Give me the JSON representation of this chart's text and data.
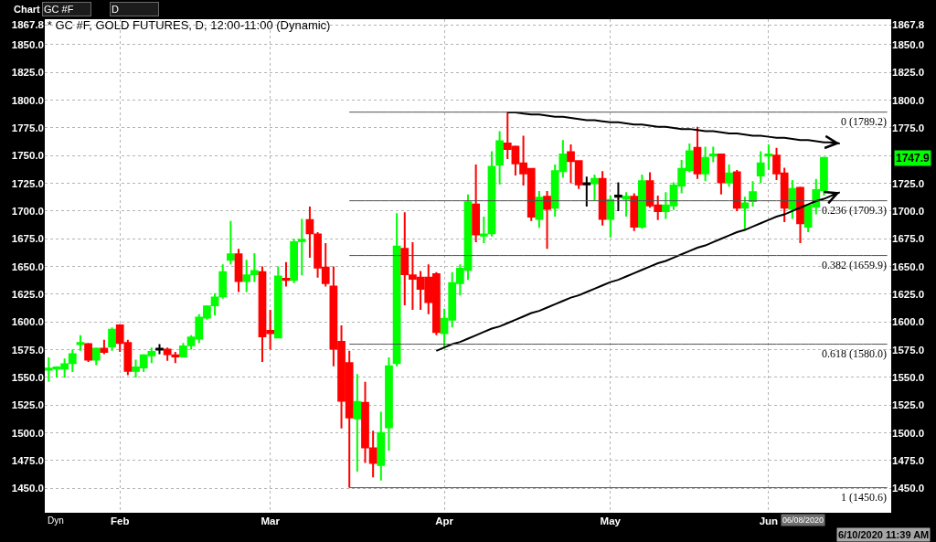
{
  "chart_data": {
    "type": "candlestick",
    "title": "* GC #F, GOLD FUTURES, D, 12:00-11:00 (Dynamic)",
    "categories": [
      null,
      null,
      null,
      null,
      null,
      null,
      null,
      null,
      null,
      "Feb",
      null,
      null,
      null,
      null,
      null,
      null,
      null,
      null,
      null,
      null,
      null,
      null,
      null,
      null,
      null,
      null,
      null,
      null,
      "Mar",
      null,
      null,
      null,
      null,
      null,
      null,
      null,
      null,
      null,
      null,
      null,
      null,
      null,
      null,
      null,
      null,
      null,
      null,
      null,
      null,
      null,
      "Apr",
      null,
      null,
      null,
      null,
      null,
      null,
      null,
      null,
      null,
      null,
      null,
      null,
      null,
      null,
      null,
      null,
      null,
      null,
      null,
      null,
      "May",
      null,
      null,
      null,
      null,
      null,
      null,
      null,
      null,
      null,
      null,
      null,
      null,
      null,
      null,
      null,
      null,
      null,
      null,
      null,
      "Jun",
      null,
      null,
      null,
      null,
      null,
      null,
      null,
      null,
      null,
      null,
      null,
      null,
      null,
      null,
      null
    ],
    "ohlc": [
      [
        1557,
        1568,
        1546,
        1558
      ],
      [
        1558,
        1560,
        1550,
        1559
      ],
      [
        1558,
        1567,
        1550,
        1562
      ],
      [
        1563,
        1575,
        1555,
        1571
      ],
      [
        1580,
        1588,
        1574,
        1581
      ],
      [
        1580,
        1581,
        1564,
        1566
      ],
      [
        1566,
        1577,
        1561,
        1576
      ],
      [
        1576,
        1584,
        1571,
        1573
      ],
      [
        1578,
        1595,
        1574,
        1593
      ],
      [
        1597,
        1598,
        1573,
        1581
      ],
      [
        1581,
        1584,
        1552,
        1556
      ],
      [
        1556,
        1566,
        1550,
        1559
      ],
      [
        1559,
        1571,
        1555,
        1570
      ],
      [
        1570,
        1577,
        1563,
        1573
      ],
      [
        1575,
        1580,
        1571,
        1576
      ],
      [
        1575,
        1577,
        1565,
        1571
      ],
      [
        1570,
        1573,
        1563,
        1569
      ],
      [
        1569,
        1581,
        1568,
        1578
      ],
      [
        1579,
        1588,
        1575,
        1586
      ],
      [
        1585,
        1607,
        1581,
        1604
      ],
      [
        1604,
        1615,
        1602,
        1614
      ],
      [
        1615,
        1626,
        1606,
        1622
      ],
      [
        1623,
        1652,
        1621,
        1645
      ],
      [
        1656,
        1691,
        1652,
        1661
      ],
      [
        1661,
        1666,
        1627,
        1637
      ],
      [
        1637,
        1656,
        1627,
        1642
      ],
      [
        1643,
        1662,
        1636,
        1646
      ],
      [
        1645,
        1650,
        1564,
        1587
      ],
      [
        1592,
        1611,
        1575,
        1590
      ],
      [
        1586,
        1650,
        1586,
        1641
      ],
      [
        1639,
        1654,
        1632,
        1638
      ],
      [
        1638,
        1675,
        1635,
        1672
      ],
      [
        1673,
        1693,
        1642,
        1674
      ],
      [
        1692,
        1704,
        1658,
        1680
      ],
      [
        1679,
        1681,
        1640,
        1649
      ],
      [
        1649,
        1671,
        1632,
        1635
      ],
      [
        1632,
        1650,
        1560,
        1576
      ],
      [
        1582,
        1597,
        1504,
        1529
      ],
      [
        1563,
        1574,
        1450.6,
        1514
      ],
      [
        1513,
        1553,
        1465,
        1528
      ],
      [
        1527,
        1546,
        1473,
        1487
      ],
      [
        1486,
        1502,
        1460,
        1473
      ],
      [
        1471,
        1519,
        1457,
        1500
      ],
      [
        1505,
        1568,
        1484,
        1560
      ],
      [
        1563,
        1698,
        1560,
        1668
      ],
      [
        1666,
        1699,
        1615,
        1643
      ],
      [
        1642,
        1672,
        1611,
        1639
      ],
      [
        1640,
        1646,
        1611,
        1630
      ],
      [
        1640,
        1652,
        1607,
        1618
      ],
      [
        1643,
        1645,
        1588,
        1591
      ],
      [
        1590,
        1612,
        1576,
        1603
      ],
      [
        1602,
        1645,
        1595,
        1635
      ],
      [
        1635,
        1652,
        1624,
        1648
      ],
      [
        1647,
        1715,
        1638,
        1708
      ],
      [
        1706,
        1742,
        1672,
        1679
      ],
      [
        1678,
        1695,
        1671,
        1679
      ],
      [
        1680,
        1754,
        1677,
        1740
      ],
      [
        1742,
        1772,
        1724,
        1763
      ],
      [
        1761,
        1789.2,
        1747,
        1756
      ],
      [
        1758,
        1759,
        1732,
        1743
      ],
      [
        1743,
        1768,
        1723,
        1734
      ],
      [
        1738,
        1738,
        1691,
        1695
      ],
      [
        1693,
        1718,
        1685,
        1712
      ],
      [
        1713,
        1718,
        1666,
        1702
      ],
      [
        1703,
        1742,
        1695,
        1736
      ],
      [
        1736,
        1764,
        1730,
        1751
      ],
      [
        1753,
        1760,
        1725,
        1745
      ],
      [
        1745,
        1745,
        1720,
        1724
      ],
      [
        1724,
        1731,
        1704,
        1725
      ],
      [
        1725,
        1733,
        1709,
        1729
      ],
      [
        1729,
        1736,
        1687,
        1693
      ],
      [
        1693,
        1714,
        1676,
        1710
      ],
      [
        1713,
        1726,
        1700,
        1714
      ],
      [
        1711,
        1717,
        1695,
        1713
      ],
      [
        1713,
        1716,
        1682,
        1686
      ],
      [
        1686,
        1733,
        1684,
        1727
      ],
      [
        1727,
        1735,
        1703,
        1705
      ],
      [
        1705,
        1714,
        1692,
        1700
      ],
      [
        1700,
        1717,
        1693,
        1705
      ],
      [
        1705,
        1726,
        1701,
        1723
      ],
      [
        1723,
        1746,
        1716,
        1738
      ],
      [
        1737,
        1761,
        1735,
        1754
      ],
      [
        1757,
        1776,
        1729,
        1734
      ],
      [
        1734,
        1758,
        1727,
        1748
      ],
      [
        1750,
        1758,
        1744,
        1751
      ],
      [
        1751,
        1751,
        1715,
        1726
      ],
      [
        1726,
        1742,
        1722,
        1734
      ],
      [
        1735,
        1737,
        1700,
        1703
      ],
      [
        1703,
        1713,
        1683,
        1707
      ],
      [
        1709,
        1727,
        1704,
        1717
      ],
      [
        1732,
        1754,
        1725,
        1743
      ],
      [
        1750,
        1760,
        1737,
        1751
      ],
      [
        1750,
        1757,
        1728,
        1734
      ],
      [
        1734,
        1739,
        1690,
        1703
      ],
      [
        1702,
        1728,
        1693,
        1720
      ],
      [
        1721,
        1722,
        1671,
        1689
      ],
      [
        1686,
        1705,
        1681,
        1705
      ],
      [
        1704,
        1729,
        1697,
        1719
      ],
      [
        1719,
        1749,
        1714,
        1747.9
      ],
      null,
      null,
      null,
      null,
      null,
      null,
      null,
      null
    ],
    "colors": [
      "#00ff00",
      "#00ff00",
      "#00ff00",
      "#00ff00",
      "#00ff00",
      "#ff0000",
      "#00ff00",
      "#ff0000",
      "#00ff00",
      "#ff0000",
      "#ff0000",
      "#00ff00",
      "#00ff00",
      "#00ff00",
      "#000000",
      "#ff0000",
      "#ff0000",
      "#00ff00",
      "#00ff00",
      "#00ff00",
      "#00ff00",
      "#00ff00",
      "#00ff00",
      "#00ff00",
      "#ff0000",
      "#00ff00",
      "#00ff00",
      "#ff0000",
      "#ff0000",
      "#00ff00",
      "#ff0000",
      "#00ff00",
      "#00ff00",
      "#ff0000",
      "#ff0000",
      "#ff0000",
      "#ff0000",
      "#ff0000",
      "#ff0000",
      "#00ff00",
      "#ff0000",
      "#ff0000",
      "#00ff00",
      "#00ff00",
      "#00ff00",
      "#ff0000",
      "#ff0000",
      "#ff0000",
      "#ff0000",
      "#ff0000",
      "#00ff00",
      "#00ff00",
      "#00ff00",
      "#00ff00",
      "#ff0000",
      "#00ff00",
      "#00ff00",
      "#00ff00",
      "#ff0000",
      "#ff0000",
      "#ff0000",
      "#ff0000",
      "#00ff00",
      "#ff0000",
      "#00ff00",
      "#00ff00",
      "#ff0000",
      "#ff0000",
      "#000000",
      "#00ff00",
      "#ff0000",
      "#00ff00",
      "#000000",
      "#00ff00",
      "#ff0000",
      "#00ff00",
      "#ff0000",
      "#ff0000",
      "#00ff00",
      "#00ff00",
      "#00ff00",
      "#00ff00",
      "#ff0000",
      "#00ff00",
      "#00ff00",
      "#ff0000",
      "#00ff00",
      "#ff0000",
      "#00ff00",
      "#00ff00",
      "#00ff00",
      "#00ff00",
      "#ff0000",
      "#ff0000",
      "#00ff00",
      "#ff0000",
      "#00ff00",
      "#00ff00",
      "#00ff00",
      null,
      null,
      null,
      null,
      null,
      null,
      null,
      null
    ],
    "series": [
      {
        "type": "line",
        "color": "#000000",
        "values": [
          null,
          null,
          null,
          null,
          null,
          null,
          null,
          null,
          null,
          null,
          null,
          null,
          null,
          null,
          null,
          null,
          null,
          null,
          null,
          null,
          null,
          null,
          null,
          null,
          null,
          null,
          null,
          null,
          null,
          null,
          null,
          null,
          null,
          null,
          null,
          null,
          null,
          null,
          null,
          null,
          null,
          null,
          null,
          null,
          null,
          null,
          null,
          null,
          null,
          null,
          null,
          null,
          null,
          null,
          null,
          null,
          null,
          null,
          1789,
          1789,
          1788,
          1787,
          1787,
          1786,
          1785,
          1785,
          1784,
          1783,
          1782,
          1782,
          1781,
          1780,
          1780,
          1779,
          1778,
          1778,
          1777,
          1776,
          1776,
          1775,
          1774,
          1774,
          1773,
          1772,
          1772,
          1771,
          1770,
          1770,
          1769,
          1768,
          1768,
          1767,
          1766,
          1766,
          1765,
          1764,
          1764,
          1763,
          1762,
          1762,
          1761,
          null,
          null,
          null,
          null,
          null,
          null
        ]
      },
      {
        "type": "line",
        "color": "#000000",
        "values": [
          null,
          null,
          null,
          null,
          null,
          null,
          null,
          null,
          null,
          null,
          null,
          null,
          null,
          null,
          null,
          null,
          null,
          null,
          null,
          null,
          null,
          null,
          null,
          null,
          null,
          null,
          null,
          null,
          null,
          null,
          null,
          null,
          null,
          null,
          null,
          null,
          null,
          null,
          null,
          null,
          null,
          null,
          null,
          null,
          null,
          null,
          null,
          null,
          null,
          1574,
          1577,
          1580,
          1582,
          1585,
          1588,
          1591,
          1594,
          1596,
          1599,
          1602,
          1605,
          1608,
          1610,
          1613,
          1616,
          1619,
          1622,
          1624,
          1627,
          1630,
          1633,
          1636,
          1638,
          1641,
          1644,
          1647,
          1650,
          1653,
          1655,
          1658,
          1661,
          1664,
          1667,
          1669,
          1672,
          1675,
          1678,
          1681,
          1683,
          1686,
          1689,
          1692,
          1695,
          1697,
          1700,
          1703,
          1706,
          1709,
          1711,
          1714,
          1717,
          null,
          null,
          null,
          null,
          null,
          null
        ]
      },
      {
        "type": "line",
        "axis": "y2",
        "name": "0 (1789.2)",
        "color": "#505050",
        "values": [
          null,
          null,
          null,
          null,
          null,
          null,
          null,
          null,
          null,
          null,
          null,
          null,
          null,
          null,
          null,
          null,
          null,
          null,
          null,
          null,
          null,
          null,
          null,
          null,
          null,
          null,
          null,
          null,
          null,
          null,
          null,
          null,
          null,
          null,
          null,
          null,
          null,
          null,
          1789.2,
          1789.2,
          1789.2,
          1789.2,
          1789.2,
          1789.2,
          1789.2,
          1789.2,
          1789.2,
          1789.2,
          1789.2,
          1789.2,
          1789.2,
          1789.2,
          1789.2,
          1789.2,
          1789.2,
          1789.2,
          1789.2,
          1789.2,
          1789.2,
          1789.2,
          1789.2,
          1789.2,
          1789.2,
          1789.2,
          1789.2,
          1789.2,
          1789.2,
          1789.2,
          1789.2,
          1789.2,
          1789.2,
          1789.2,
          1789.2,
          1789.2,
          1789.2,
          1789.2,
          1789.2,
          1789.2,
          1789.2,
          1789.2,
          1789.2,
          1789.2,
          1789.2,
          1789.2,
          1789.2,
          1789.2,
          1789.2,
          1789.2,
          1789.2,
          1789.2,
          1789.2,
          1789.2,
          1789.2,
          1789.2,
          1789.2,
          1789.2,
          1789.2,
          1789.2,
          1789.2,
          1789.2,
          1789.2,
          1789.2,
          1789.2,
          1789.2,
          1789.2,
          1789.2,
          1789.2
        ]
      },
      {
        "type": "line",
        "axis": "y2",
        "name": "0.236 (1709.3)",
        "color": "#505050",
        "values": [
          null,
          null,
          null,
          null,
          null,
          null,
          null,
          null,
          null,
          null,
          null,
          null,
          null,
          null,
          null,
          null,
          null,
          null,
          null,
          null,
          null,
          null,
          null,
          null,
          null,
          null,
          null,
          null,
          null,
          null,
          null,
          null,
          null,
          null,
          null,
          null,
          null,
          null,
          1709.3,
          1709.3,
          1709.3,
          1709.3,
          1709.3,
          1709.3,
          1709.3,
          1709.3,
          1709.3,
          1709.3,
          1709.3,
          1709.3,
          1709.3,
          1709.3,
          1709.3,
          1709.3,
          1709.3,
          1709.3,
          1709.3,
          1709.3,
          1709.3,
          1709.3,
          1709.3,
          1709.3,
          1709.3,
          1709.3,
          1709.3,
          1709.3,
          1709.3,
          1709.3,
          1709.3,
          1709.3,
          1709.3,
          1709.3,
          1709.3,
          1709.3,
          1709.3,
          1709.3,
          1709.3,
          1709.3,
          1709.3,
          1709.3,
          1709.3,
          1709.3,
          1709.3,
          1709.3,
          1709.3,
          1709.3,
          1709.3,
          1709.3,
          1709.3,
          1709.3,
          1709.3,
          1709.3,
          1709.3,
          1709.3,
          1709.3,
          1709.3,
          1709.3,
          1709.3,
          1709.3,
          1709.3,
          1709.3,
          1709.3,
          1709.3,
          1709.3,
          1709.3,
          1709.3,
          1709.3
        ]
      },
      {
        "type": "line",
        "axis": "y2",
        "name": "0.382 (1659.9)",
        "color": "#505050",
        "values": [
          null,
          null,
          null,
          null,
          null,
          null,
          null,
          null,
          null,
          null,
          null,
          null,
          null,
          null,
          null,
          null,
          null,
          null,
          null,
          null,
          null,
          null,
          null,
          null,
          null,
          null,
          null,
          null,
          null,
          null,
          null,
          null,
          null,
          null,
          null,
          null,
          null,
          null,
          1659.9,
          1659.9,
          1659.9,
          1659.9,
          1659.9,
          1659.9,
          1659.9,
          1659.9,
          1659.9,
          1659.9,
          1659.9,
          1659.9,
          1659.9,
          1659.9,
          1659.9,
          1659.9,
          1659.9,
          1659.9,
          1659.9,
          1659.9,
          1659.9,
          1659.9,
          1659.9,
          1659.9,
          1659.9,
          1659.9,
          1659.9,
          1659.9,
          1659.9,
          1659.9,
          1659.9,
          1659.9,
          1659.9,
          1659.9,
          1659.9,
          1659.9,
          1659.9,
          1659.9,
          1659.9,
          1659.9,
          1659.9,
          1659.9,
          1659.9,
          1659.9,
          1659.9,
          1659.9,
          1659.9,
          1659.9,
          1659.9,
          1659.9,
          1659.9,
          1659.9,
          1659.9,
          1659.9,
          1659.9,
          1659.9,
          1659.9,
          1659.9,
          1659.9,
          1659.9,
          1659.9,
          1659.9,
          1659.9,
          1659.9,
          1659.9,
          1659.9,
          1659.9,
          1659.9,
          1659.9
        ]
      },
      {
        "type": "line",
        "axis": "y2",
        "name": "0.618 (1580.0)",
        "color": "#505050",
        "values": [
          null,
          null,
          null,
          null,
          null,
          null,
          null,
          null,
          null,
          null,
          null,
          null,
          null,
          null,
          null,
          null,
          null,
          null,
          null,
          null,
          null,
          null,
          null,
          null,
          null,
          null,
          null,
          null,
          null,
          null,
          null,
          null,
          null,
          null,
          null,
          null,
          null,
          null,
          1580.0,
          1580.0,
          1580.0,
          1580.0,
          1580.0,
          1580.0,
          1580.0,
          1580.0,
          1580.0,
          1580.0,
          1580.0,
          1580.0,
          1580.0,
          1580.0,
          1580.0,
          1580.0,
          1580.0,
          1580.0,
          1580.0,
          1580.0,
          1580.0,
          1580.0,
          1580.0,
          1580.0,
          1580.0,
          1580.0,
          1580.0,
          1580.0,
          1580.0,
          1580.0,
          1580.0,
          1580.0,
          1580.0,
          1580.0,
          1580.0,
          1580.0,
          1580.0,
          1580.0,
          1580.0,
          1580.0,
          1580.0,
          1580.0,
          1580.0,
          1580.0,
          1580.0,
          1580.0,
          1580.0,
          1580.0,
          1580.0,
          1580.0,
          1580.0,
          1580.0,
          1580.0,
          1580.0,
          1580.0,
          1580.0,
          1580.0,
          1580.0,
          1580.0,
          1580.0,
          1580.0,
          1580.0,
          1580.0,
          1580.0,
          1580.0,
          1580.0,
          1580.0,
          1580.0,
          1580.0
        ]
      },
      {
        "type": "line",
        "axis": "y2",
        "name": "1 (1450.6)",
        "color": "#505050",
        "values": [
          null,
          null,
          null,
          null,
          null,
          null,
          null,
          null,
          null,
          null,
          null,
          null,
          null,
          null,
          null,
          null,
          null,
          null,
          null,
          null,
          null,
          null,
          null,
          null,
          null,
          null,
          null,
          null,
          null,
          null,
          null,
          null,
          null,
          null,
          null,
          null,
          null,
          null,
          1450.6,
          1450.6,
          1450.6,
          1450.6,
          1450.6,
          1450.6,
          1450.6,
          1450.6,
          1450.6,
          1450.6,
          1450.6,
          1450.6,
          1450.6,
          1450.6,
          1450.6,
          1450.6,
          1450.6,
          1450.6,
          1450.6,
          1450.6,
          1450.6,
          1450.6,
          1450.6,
          1450.6,
          1450.6,
          1450.6,
          1450.6,
          1450.6,
          1450.6,
          1450.6,
          1450.6,
          1450.6,
          1450.6,
          1450.6,
          1450.6,
          1450.6,
          1450.6,
          1450.6,
          1450.6,
          1450.6,
          1450.6,
          1450.6,
          1450.6,
          1450.6,
          1450.6,
          1450.6,
          1450.6,
          1450.6,
          1450.6,
          1450.6,
          1450.6,
          1450.6,
          1450.6,
          1450.6,
          1450.6,
          1450.6,
          1450.6,
          1450.6,
          1450.6,
          1450.6,
          1450.6,
          1450.6,
          1450.6,
          1450.6,
          1450.6,
          1450.6,
          1450.6,
          1450.6,
          1450.6
        ]
      }
    ],
    "ylim": [
      1428,
      1873
    ],
    "yticks": [
      {
        "value": 1450,
        "label": "1450.0"
      },
      {
        "value": 1475,
        "label": "1475.0"
      },
      {
        "value": 1500,
        "label": "1500.0"
      },
      {
        "value": 1525,
        "label": "1525.0"
      },
      {
        "value": 1550,
        "label": "1550.0"
      },
      {
        "value": 1575,
        "label": "1575.0"
      },
      {
        "value": 1600,
        "label": "1600.0"
      },
      {
        "value": 1625,
        "label": "1625.0"
      },
      {
        "value": 1650,
        "label": "1650.0"
      },
      {
        "value": 1675,
        "label": "1675.0"
      },
      {
        "value": 1700,
        "label": "1700.0"
      },
      {
        "value": 1725,
        "label": "1725.0"
      },
      {
        "value": 1750,
        "label": "1750.0"
      },
      {
        "value": 1775,
        "label": "1775.0"
      },
      {
        "value": 1800,
        "label": "1800.0"
      },
      {
        "value": 1825,
        "label": "1825.0"
      },
      {
        "value": 1850,
        "label": "1850.0"
      },
      1867.8
    ],
    "y2lim": [
      1428,
      1873
    ],
    "y2ticks": [
      {
        "value": 1450,
        "label": "1450.0"
      },
      {
        "value": 1475,
        "label": "1475.0"
      },
      {
        "value": 1500,
        "label": "1500.0"
      },
      {
        "value": 1525,
        "label": "1525.0"
      },
      {
        "value": 1550,
        "label": "1550.0"
      },
      {
        "value": 1575,
        "label": "1575.0"
      },
      {
        "value": 1600,
        "label": "1600.0"
      },
      {
        "value": 1625,
        "label": "1625.0"
      },
      {
        "value": 1650,
        "label": "1650.0"
      },
      {
        "value": 1675,
        "label": "1675.0"
      },
      {
        "value": 1700,
        "label": "1700.0"
      },
      {
        "value": 1725,
        "label": "1725.0"
      },
      {
        "value": 1775,
        "label": "1775.0"
      },
      {
        "value": 1800,
        "label": "1800.0"
      },
      {
        "value": 1825,
        "label": "1825.0"
      },
      {
        "value": 1850,
        "label": "1850.0"
      },
      1867.8
    ],
    "grid": true,
    "annotations": [
      "1747.9",
      "06/08/2020",
      "Chart",
      "GC #F",
      "D",
      "Dyn",
      "6/10/2020 11:39 AM"
    ]
  }
}
